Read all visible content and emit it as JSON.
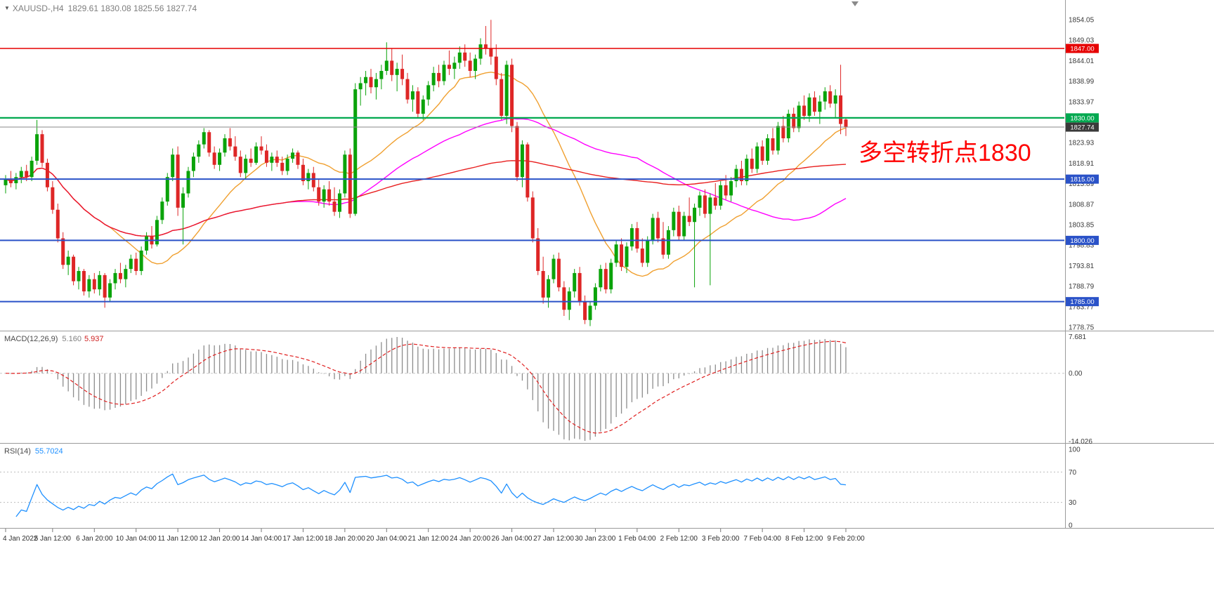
{
  "header": {
    "symbol": "XAUUSD-,H4",
    "ohlc_text": "1829.61 1830.08 1825.56 1827.74"
  },
  "annotation": {
    "text": "多空转折点1830",
    "color": "#ff0000"
  },
  "chart_data": {
    "type": "candlestick",
    "title": "XAUUSD-,H4",
    "symbol": "XAUUSD",
    "timeframe": "H4",
    "current": {
      "open": 1829.61,
      "high": 1830.08,
      "low": 1825.56,
      "close": 1827.74
    },
    "bull_color": "#0aa30a",
    "bear_color": "#de2626",
    "y_axis": {
      "min": 1778.75,
      "max": 1854.05,
      "tick_labels": [
        "1854.05",
        "1849.03",
        "1844.01",
        "1838.99",
        "1833.97",
        "1828.95",
        "1823.93",
        "1818.91",
        "1813.89",
        "1808.87",
        "1803.85",
        "1798.83",
        "1793.81",
        "1788.79",
        "1783.77",
        "1778.75"
      ]
    },
    "x_axis": {
      "tick_labels": [
        "4 Jan 2022",
        "5 Jan 12:00",
        "6 Jan 20:00",
        "10 Jan 04:00",
        "11 Jan 12:00",
        "12 Jan 20:00",
        "14 Jan 04:00",
        "17 Jan 12:00",
        "18 Jan 20:00",
        "20 Jan 04:00",
        "21 Jan 12:00",
        "24 Jan 20:00",
        "26 Jan 04:00",
        "27 Jan 12:00",
        "30 Jan 23:00",
        "1 Feb 04:00",
        "2 Feb 12:00",
        "3 Feb 20:00",
        "7 Feb 04:00",
        "8 Feb 12:00",
        "9 Feb 20:00"
      ],
      "tick_candle_indices": [
        0,
        9,
        17,
        25,
        33,
        41,
        49,
        57,
        65,
        73,
        81,
        89,
        97,
        105,
        113,
        121,
        129,
        137,
        145,
        153,
        161
      ]
    },
    "horizontal_levels": [
      {
        "price": 1847.0,
        "label": "1847.00",
        "color": "#e60000",
        "line_width": 1.4
      },
      {
        "price": 1830.0,
        "label": "1830.00",
        "color": "#00a84f",
        "line_width": 2.2
      },
      {
        "price": 1827.74,
        "label": "1827.74",
        "color": "#8a8a8a",
        "tag_color": "#3a3a3a",
        "line_width": 1
      },
      {
        "price": 1815.0,
        "label": "1815.00",
        "color": "#2a52c8",
        "line_width": 2
      },
      {
        "price": 1800.0,
        "label": "1800.00",
        "color": "#2a52c8",
        "line_width": 2
      },
      {
        "price": 1785.0,
        "label": "1785.00",
        "color": "#2a52c8",
        "line_width": 2
      }
    ],
    "overlays": [
      {
        "name": "ma-orange",
        "period": 21,
        "color": "#f0a030"
      },
      {
        "name": "ma-magenta",
        "period": 55,
        "color": "#ff00ff"
      },
      {
        "name": "ma-red",
        "period": 120,
        "color": "#e82020"
      }
    ],
    "subpanels": {
      "macd": {
        "label": "MACD(12,26,9)",
        "value_main": "5.160",
        "value_signal": "5.937",
        "fast": 12,
        "slow": 26,
        "signal": 9,
        "scale": [
          "7.681",
          "0.00",
          "-14.026"
        ],
        "scale_max": 7.681,
        "scale_min": -14.026,
        "hist_color": "#8c8c8c",
        "signal_color": "#e02020"
      },
      "rsi": {
        "label": "RSI(14)",
        "value": "55.7024",
        "period": 14,
        "color": "#1e90ff",
        "scale": [
          "100",
          "70",
          "30",
          "0"
        ],
        "scale_values": [
          100,
          70,
          30,
          0
        ],
        "level_high": 70,
        "level_low": 30
      }
    },
    "candles": [
      [
        1813.5,
        1816,
        1811.5,
        1815
      ],
      [
        1815,
        1817,
        1813,
        1814
      ],
      [
        1814,
        1816.5,
        1812.5,
        1815.5
      ],
      [
        1815.5,
        1818,
        1814,
        1817
      ],
      [
        1817,
        1818.5,
        1814.5,
        1815.5
      ],
      [
        1815.5,
        1820.5,
        1814.5,
        1819.5
      ],
      [
        1819.5,
        1829.5,
        1818.5,
        1826
      ],
      [
        1826,
        1827,
        1818,
        1819
      ],
      [
        1819,
        1820,
        1812,
        1813
      ],
      [
        1813,
        1814.5,
        1806.5,
        1807.5
      ],
      [
        1807.5,
        1809,
        1799.5,
        1800.5
      ],
      [
        1800.5,
        1802,
        1793,
        1794
      ],
      [
        1794,
        1797.5,
        1791.5,
        1796
      ],
      [
        1796,
        1796.5,
        1789,
        1790
      ],
      [
        1790,
        1793.5,
        1788,
        1792.5
      ],
      [
        1792.5,
        1793,
        1786.5,
        1787.5
      ],
      [
        1787.5,
        1791.5,
        1786,
        1790.5
      ],
      [
        1790.5,
        1792,
        1787,
        1788
      ],
      [
        1788,
        1792.5,
        1786.5,
        1791.5
      ],
      [
        1791.5,
        1792,
        1783.5,
        1786
      ],
      [
        1786,
        1790.5,
        1785,
        1789.5
      ],
      [
        1789.5,
        1793,
        1788,
        1792
      ],
      [
        1792,
        1794.5,
        1789.5,
        1790.5
      ],
      [
        1790.5,
        1794,
        1788.5,
        1793
      ],
      [
        1793,
        1796.5,
        1792,
        1795.5
      ],
      [
        1795.5,
        1797,
        1791.5,
        1792.5
      ],
      [
        1792.5,
        1798.5,
        1791.5,
        1797.5
      ],
      [
        1797.5,
        1802,
        1796.5,
        1801
      ],
      [
        1801,
        1803.5,
        1798,
        1799
      ],
      [
        1799,
        1806,
        1798.5,
        1805
      ],
      [
        1805,
        1810.5,
        1804,
        1809.5
      ],
      [
        1809.5,
        1816.5,
        1808.5,
        1815.5
      ],
      [
        1815.5,
        1822.5,
        1814.5,
        1821
      ],
      [
        1821,
        1823,
        1806,
        1808
      ],
      [
        1808,
        1813,
        1799,
        1811.5
      ],
      [
        1811.5,
        1818,
        1810.5,
        1817
      ],
      [
        1817,
        1821.5,
        1815.5,
        1820.5
      ],
      [
        1820.5,
        1824.5,
        1819,
        1823.5
      ],
      [
        1823.5,
        1827.5,
        1822.5,
        1826.5
      ],
      [
        1826.5,
        1827,
        1820.5,
        1821.5
      ],
      [
        1821.5,
        1823,
        1817.5,
        1818.5
      ],
      [
        1818.5,
        1822.5,
        1817,
        1821.5
      ],
      [
        1821.5,
        1826,
        1820.5,
        1825
      ],
      [
        1825,
        1827.5,
        1822,
        1823
      ],
      [
        1823,
        1825.5,
        1819.5,
        1820.5
      ],
      [
        1820.5,
        1822,
        1815.5,
        1816.5
      ],
      [
        1816.5,
        1821,
        1815,
        1820
      ],
      [
        1820,
        1822.5,
        1818,
        1819
      ],
      [
        1819,
        1824,
        1818.5,
        1823
      ],
      [
        1823,
        1825.5,
        1821,
        1822
      ],
      [
        1822,
        1823.5,
        1818,
        1819
      ],
      [
        1819,
        1821.5,
        1817,
        1820.5
      ],
      [
        1820.5,
        1822,
        1818,
        1819
      ],
      [
        1819,
        1820.5,
        1816,
        1817
      ],
      [
        1817,
        1821,
        1816,
        1820
      ],
      [
        1820,
        1822.5,
        1819,
        1821.5
      ],
      [
        1821.5,
        1822,
        1817.5,
        1818.5
      ],
      [
        1818.5,
        1820,
        1813.5,
        1814.5
      ],
      [
        1814.5,
        1817.5,
        1812.5,
        1816.5
      ],
      [
        1816.5,
        1818,
        1812,
        1813
      ],
      [
        1813,
        1815,
        1808.5,
        1809.5
      ],
      [
        1809.5,
        1813.5,
        1808,
        1812.5
      ],
      [
        1812.5,
        1814.5,
        1808.5,
        1809.5
      ],
      [
        1809.5,
        1813,
        1806,
        1807
      ],
      [
        1807,
        1812.5,
        1805.5,
        1811.5
      ],
      [
        1811.5,
        1822,
        1810.5,
        1821
      ],
      [
        1821,
        1822.5,
        1805.5,
        1806.5
      ],
      [
        1806.5,
        1838.5,
        1806,
        1837
      ],
      [
        1837,
        1840,
        1833,
        1838.5
      ],
      [
        1838.5,
        1841.5,
        1835.5,
        1840
      ],
      [
        1840,
        1842,
        1836,
        1837.5
      ],
      [
        1837.5,
        1841,
        1834.5,
        1839.5
      ],
      [
        1839.5,
        1843,
        1837,
        1841.5
      ],
      [
        1841.5,
        1848.5,
        1840.5,
        1844
      ],
      [
        1844,
        1847,
        1839,
        1840.5
      ],
      [
        1840.5,
        1843.5,
        1836.5,
        1842
      ],
      [
        1842,
        1845.5,
        1838,
        1839.5
      ],
      [
        1839.5,
        1841,
        1833.5,
        1834.5
      ],
      [
        1834.5,
        1838,
        1831.5,
        1836.5
      ],
      [
        1836.5,
        1837.5,
        1830,
        1831
      ],
      [
        1831,
        1835.5,
        1829.5,
        1834.5
      ],
      [
        1834.5,
        1839,
        1833,
        1838
      ],
      [
        1838,
        1842.5,
        1836.5,
        1841
      ],
      [
        1841,
        1843,
        1837.5,
        1839
      ],
      [
        1839,
        1844,
        1838,
        1843
      ],
      [
        1843,
        1846.5,
        1840.5,
        1842
      ],
      [
        1842,
        1845,
        1839.5,
        1843.5
      ],
      [
        1843.5,
        1847.5,
        1842,
        1846
      ],
      [
        1846,
        1848,
        1842.5,
        1844
      ],
      [
        1844,
        1846,
        1840,
        1841.5
      ],
      [
        1841.5,
        1845.5,
        1839.5,
        1844.5
      ],
      [
        1844.5,
        1849.5,
        1843,
        1848
      ],
      [
        1848,
        1852.5,
        1845.5,
        1847
      ],
      [
        1847,
        1854,
        1843,
        1845
      ],
      [
        1845,
        1848,
        1838,
        1839.5
      ],
      [
        1839.5,
        1841,
        1829.5,
        1830.5
      ],
      [
        1830.5,
        1844,
        1828.5,
        1843
      ],
      [
        1843,
        1844.5,
        1826.5,
        1828
      ],
      [
        1828,
        1829,
        1814.5,
        1815.5
      ],
      [
        1815.5,
        1824.5,
        1813,
        1823.5
      ],
      [
        1823.5,
        1824,
        1809.5,
        1810.5
      ],
      [
        1810.5,
        1812,
        1799.5,
        1800.5
      ],
      [
        1800.5,
        1803,
        1791.5,
        1792.5
      ],
      [
        1792.5,
        1796,
        1784.5,
        1786
      ],
      [
        1786,
        1791.5,
        1783.5,
        1790.5
      ],
      [
        1790.5,
        1796.5,
        1789.5,
        1795.5
      ],
      [
        1795.5,
        1797,
        1787.5,
        1788.5
      ],
      [
        1788.5,
        1790,
        1781.5,
        1783
      ],
      [
        1783,
        1788.5,
        1780.5,
        1787.5
      ],
      [
        1787.5,
        1793,
        1786,
        1792
      ],
      [
        1792,
        1793.5,
        1784,
        1785
      ],
      [
        1785,
        1786.5,
        1779.5,
        1780.5
      ],
      [
        1780.5,
        1785,
        1779,
        1784
      ],
      [
        1784,
        1789.5,
        1783,
        1788.5
      ],
      [
        1788.5,
        1794,
        1787.5,
        1793
      ],
      [
        1793,
        1794.5,
        1787,
        1788
      ],
      [
        1788,
        1795.5,
        1787,
        1794.5
      ],
      [
        1794.5,
        1800,
        1793.5,
        1799
      ],
      [
        1799,
        1800.5,
        1792.5,
        1793.5
      ],
      [
        1793.5,
        1799.5,
        1792,
        1798.5
      ],
      [
        1798.5,
        1804,
        1797.5,
        1803
      ],
      [
        1803,
        1804.5,
        1797,
        1798
      ],
      [
        1798,
        1800.5,
        1793.5,
        1794.5
      ],
      [
        1794.5,
        1801,
        1793.5,
        1800
      ],
      [
        1800,
        1806.5,
        1799,
        1805.5
      ],
      [
        1805.5,
        1807,
        1799.5,
        1800.5
      ],
      [
        1800.5,
        1804.5,
        1795.5,
        1796.5
      ],
      [
        1796.5,
        1803.5,
        1795.5,
        1802.5
      ],
      [
        1802.5,
        1808,
        1801,
        1807
      ],
      [
        1807,
        1808.5,
        1800,
        1801
      ],
      [
        1801,
        1807,
        1800,
        1806
      ],
      [
        1806,
        1810.5,
        1803.5,
        1804.5
      ],
      [
        1804.5,
        1809,
        1788.5,
        1808
      ],
      [
        1808,
        1812,
        1806,
        1811
      ],
      [
        1811,
        1812.5,
        1805.5,
        1806.5
      ],
      [
        1806.5,
        1811.5,
        1789,
        1810.5
      ],
      [
        1810.5,
        1814,
        1807.5,
        1808.5
      ],
      [
        1808.5,
        1814.5,
        1807.5,
        1813.5
      ],
      [
        1813.5,
        1816,
        1810,
        1811
      ],
      [
        1811,
        1815.5,
        1809.5,
        1814.5
      ],
      [
        1814.5,
        1818.5,
        1813,
        1817.5
      ],
      [
        1817.5,
        1819.5,
        1813.5,
        1814.5
      ],
      [
        1814.5,
        1821,
        1813.5,
        1820
      ],
      [
        1820,
        1822.5,
        1816.5,
        1817.5
      ],
      [
        1817.5,
        1824,
        1816.5,
        1823
      ],
      [
        1823,
        1824.5,
        1818.5,
        1819.5
      ],
      [
        1819.5,
        1826,
        1818.5,
        1825
      ],
      [
        1825,
        1827.5,
        1821,
        1822
      ],
      [
        1822,
        1829,
        1821,
        1828
      ],
      [
        1828,
        1830.5,
        1824,
        1825
      ],
      [
        1825,
        1832,
        1824,
        1831
      ],
      [
        1831,
        1832.5,
        1826.5,
        1827.5
      ],
      [
        1827.5,
        1834,
        1826.5,
        1833
      ],
      [
        1833,
        1835.5,
        1829.5,
        1830.5
      ],
      [
        1830.5,
        1836,
        1829,
        1835
      ],
      [
        1835,
        1836.5,
        1830.5,
        1831.5
      ],
      [
        1831.5,
        1835.5,
        1828.5,
        1834
      ],
      [
        1834,
        1837.5,
        1832,
        1836.5
      ],
      [
        1836.5,
        1838,
        1832.5,
        1833.5
      ],
      [
        1833.5,
        1837,
        1830,
        1835.5
      ],
      [
        1835.5,
        1843,
        1826,
        1828.5
      ],
      [
        1829.61,
        1830.08,
        1825.56,
        1827.74
      ]
    ]
  }
}
